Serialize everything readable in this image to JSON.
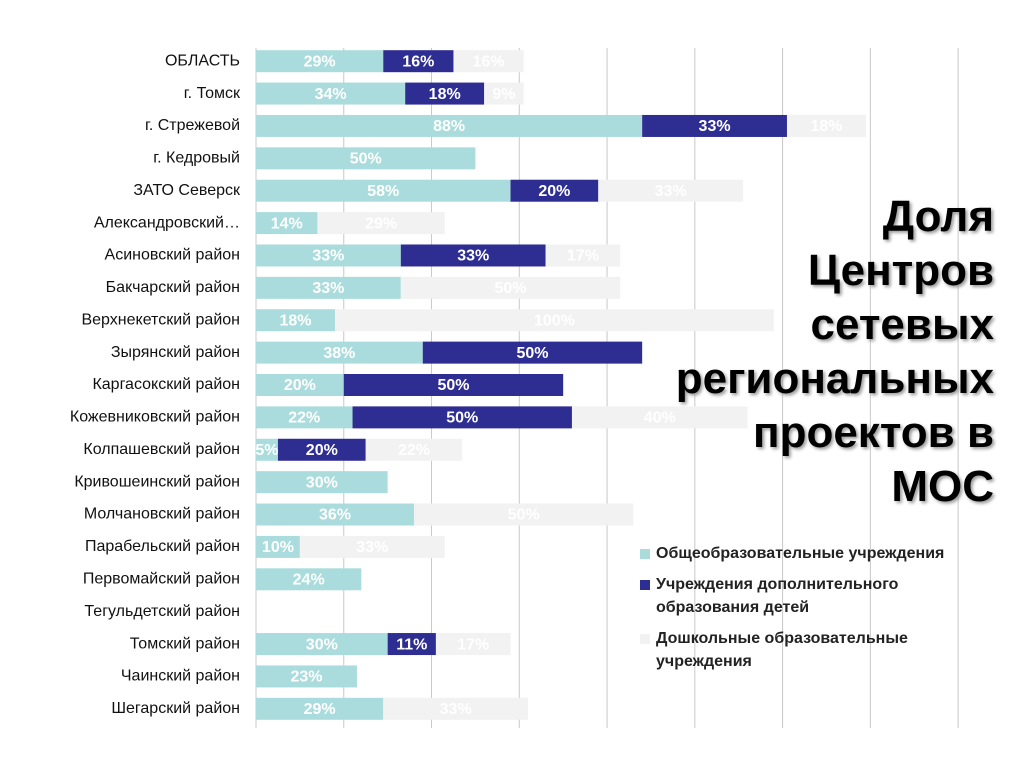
{
  "chart_data": {
    "type": "stacked-bar",
    "title": "Доля\nЦентров\nсетевых\nрегиональных\nпроектов в\nМОС",
    "categories": [
      "ОБЛАСТЬ",
      "г. Томск",
      "г. Стрежевой",
      "г. Кедровый",
      "ЗАТО Северск",
      "Александровский…",
      "Асиновский район",
      "Бакчарский район",
      "Верхнекетский район",
      "Зырянский район",
      "Каргасокский район",
      "Кожевниковский район",
      "Колпашевский район",
      "Кривошеинский район",
      "Молчановский район",
      "Парабельский район",
      "Первомайский район",
      "Тегульдетский район",
      "Томский район",
      "Чаинский район",
      "Шегарский район"
    ],
    "series": [
      {
        "name": "Общеобразовательные учреждения",
        "color": "#abdcdd",
        "values": [
          29,
          34,
          88,
          50,
          58,
          14,
          33,
          33,
          18,
          38,
          20,
          22,
          5,
          30,
          36,
          10,
          24,
          null,
          30,
          23,
          29
        ],
        "value_labels": [
          "29%",
          "34%",
          "88%",
          "50%",
          "58%",
          "14%",
          "33%",
          "33%",
          "18%",
          "38%",
          "20%",
          "22%",
          "5%",
          "30%",
          "36%",
          "10%",
          "24%",
          null,
          "30%",
          "23%",
          "29%"
        ]
      },
      {
        "name": "Учреждения дополнительного образования детей",
        "color": "#2e2d91",
        "values": [
          16,
          18,
          33,
          null,
          20,
          null,
          33,
          null,
          null,
          50,
          50,
          50,
          20,
          null,
          null,
          null,
          null,
          null,
          11,
          null,
          null
        ],
        "value_labels": [
          "16%",
          "18%",
          "33%",
          null,
          "20%",
          null,
          "33%",
          null,
          null,
          "50%",
          "50%",
          "50%",
          "20%",
          null,
          null,
          null,
          null,
          null,
          "11%",
          null,
          null
        ]
      },
      {
        "name": "Дошкольные образовательные учреждения",
        "color": "#f2f2f2",
        "values": [
          16,
          9,
          18,
          null,
          33,
          29,
          17,
          50,
          100,
          null,
          null,
          40,
          22,
          null,
          50,
          33,
          null,
          null,
          17,
          null,
          33
        ],
        "value_labels": [
          "16%",
          "9%",
          "18%",
          null,
          "33%",
          "29%",
          "17%",
          "50%",
          "100%",
          null,
          null,
          "40%",
          "22%",
          null,
          "50%",
          "33%",
          null,
          null,
          "17%",
          null,
          "33%"
        ]
      }
    ],
    "xlim": [
      0,
      170
    ],
    "xticks": [
      0,
      20,
      40,
      60,
      80,
      100,
      120,
      140,
      160
    ],
    "grid": true
  }
}
